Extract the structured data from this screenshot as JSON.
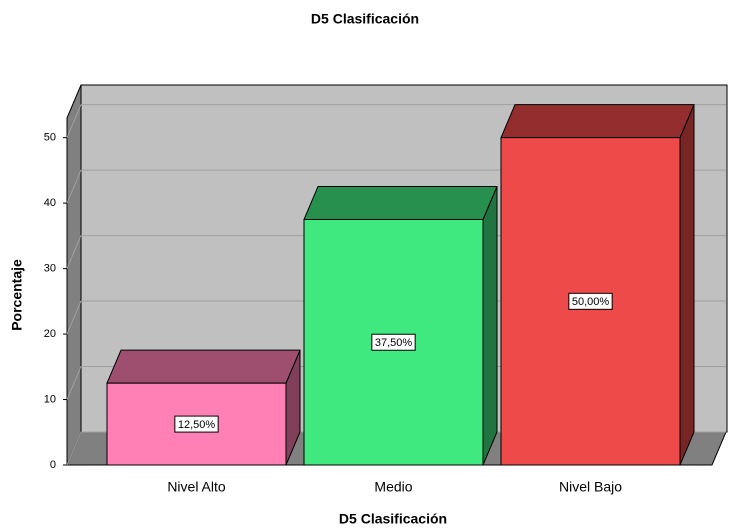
{
  "chart_data": {
    "type": "bar3d",
    "title": "D5 Clasificación",
    "x_label": "D5 Clasificación",
    "y_label": "Porcentaje",
    "categories": [
      "Nivel Alto",
      "Medio",
      "Nivel Bajo"
    ],
    "values": [
      12.5,
      37.5,
      50
    ],
    "value_labels": [
      "12,50%",
      "37,50%",
      "50,00%"
    ],
    "colors": [
      "#ff80b4",
      "#40e880",
      "#ef4a4a"
    ],
    "ylim": [
      0,
      53
    ],
    "yticks": [
      0,
      10,
      20,
      30,
      40,
      50
    ],
    "grid": true
  }
}
